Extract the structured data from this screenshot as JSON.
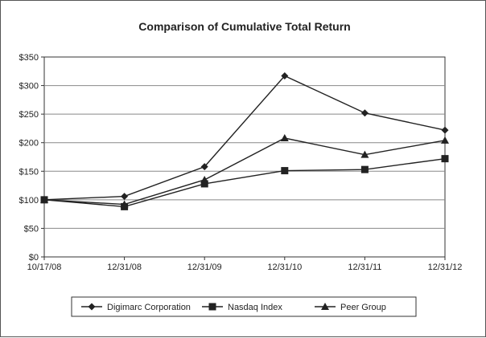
{
  "chart_data": {
    "type": "line",
    "title": "Comparison of Cumulative Total Return",
    "xlabel": "",
    "ylabel": "",
    "categories": [
      "10/17/08",
      "12/31/08",
      "12/31/09",
      "12/31/10",
      "12/31/11",
      "12/31/12"
    ],
    "y_tick_values": [
      0,
      50,
      100,
      150,
      200,
      250,
      300,
      350
    ],
    "y_tick_labels": [
      "$0",
      "$50",
      "$100",
      "$150",
      "$200",
      "$250",
      "$300",
      "$350"
    ],
    "ylim": [
      0,
      350
    ],
    "grid": "horizontal",
    "legend_position": "bottom",
    "series": [
      {
        "name": "Digimarc Corporation",
        "marker": "diamond",
        "values": [
          100,
          106,
          158,
          317,
          252,
          222
        ]
      },
      {
        "name": "Nasdaq Index",
        "marker": "square",
        "values": [
          100,
          88,
          128,
          151,
          153,
          172
        ]
      },
      {
        "name": "Peer Group",
        "marker": "triangle",
        "values": [
          100,
          92,
          135,
          208,
          179,
          204
        ]
      }
    ],
    "colors": {
      "line": "#222222",
      "grid": "#888888",
      "axis": "#333333"
    }
  }
}
